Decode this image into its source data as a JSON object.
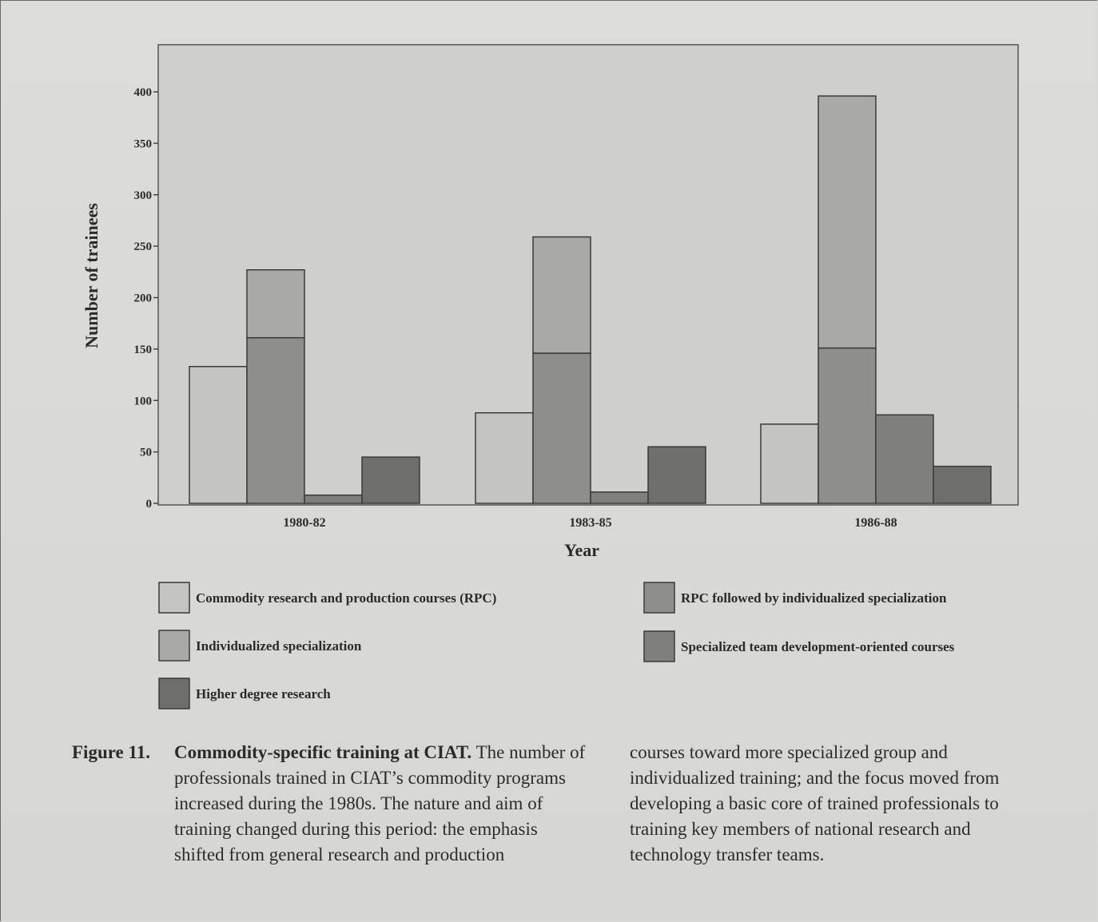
{
  "chart_data": {
    "type": "bar",
    "xlabel": "Year",
    "ylabel": "Number of trainees",
    "ylim": [
      0,
      440
    ],
    "yticks": [
      "0",
      "50",
      "100",
      "150",
      "200",
      "250",
      "300",
      "350",
      "400"
    ],
    "categories": [
      "1980-82",
      "1983-85",
      "1986-88"
    ],
    "series": [
      {
        "name": "Commodity research and production courses (RPC)",
        "values": [
          133,
          88,
          77
        ],
        "color": "#c4c4c2"
      },
      {
        "name": "RPC followed by individualized specialization",
        "values": [
          161,
          146,
          151
        ],
        "color": "#8e8e8c"
      },
      {
        "name": "Individualized specialization",
        "values": [
          66,
          113,
          245
        ],
        "color": "#a9a9a7"
      },
      {
        "name": "Specialized team development-oriented courses",
        "values": [
          8,
          11,
          86
        ],
        "color": "#7f7f7d"
      },
      {
        "name": "Higher degree research",
        "values": [
          45,
          55,
          36
        ],
        "color": "#6e6e6c"
      }
    ],
    "stacked_on": {
      "Individualized specialization": "RPC followed by individualized specialization"
    },
    "grid": false,
    "legend_position": "bottom"
  },
  "caption": {
    "label": "Figure  11.",
    "title": "Commodity-specific training at CIAT.",
    "col1_text": "The number of professionals trained in CIAT’s commodity programs increased during the 1980s. The nature and aim of training changed during this period: the emphasis shifted from general research and production",
    "col2_text": "courses toward more specialized group and individualized training; and the focus moved from developing a basic core of trained professionals to training key members of national research and technology transfer teams."
  }
}
